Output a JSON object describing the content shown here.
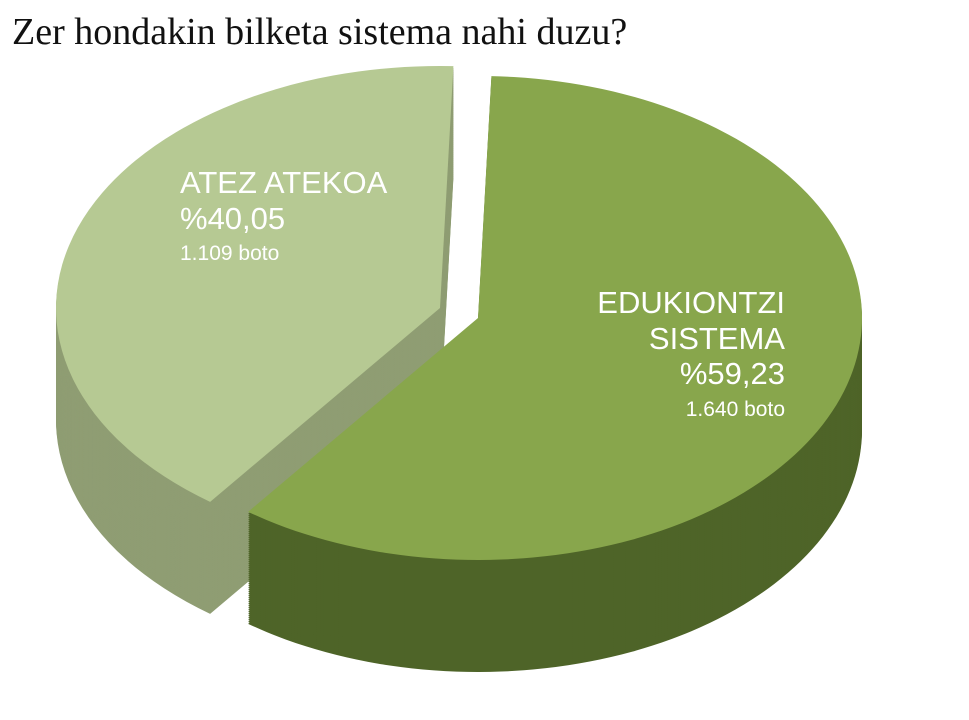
{
  "chart_data": {
    "type": "pie",
    "title": "Zer hondakin bilketa sistema nahi duzu?",
    "categories": [
      "ATEZ ATEKOA",
      "EDUKIONTZI SISTEMA"
    ],
    "values": [
      40.05,
      59.23
    ],
    "value_labels": [
      "%40,05",
      "%59,23"
    ],
    "vote_labels": [
      "1.109 boto",
      "1.640 boto"
    ],
    "colors": [
      "#b6c993",
      "#88a64c"
    ],
    "side_colors": [
      "#8f9d73",
      "#4e6428"
    ]
  }
}
